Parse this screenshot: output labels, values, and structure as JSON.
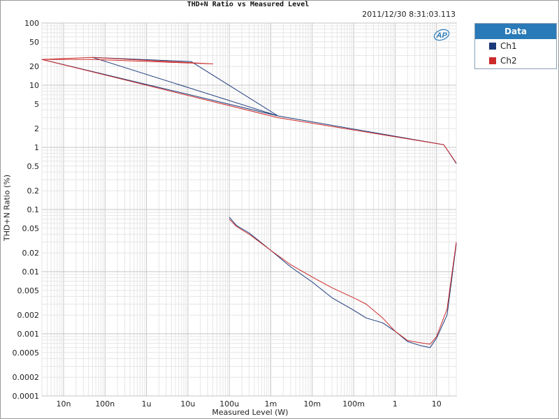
{
  "window": {
    "title": "THD+N Ratio vs Measured Level",
    "timestamp": "2011/12/30 8:31:03.113"
  },
  "legend": {
    "header": "Data",
    "items": [
      {
        "label": "Ch1",
        "color": "#1c3a7a"
      },
      {
        "label": "Ch2",
        "color": "#cc2a2a"
      }
    ]
  },
  "logo": {
    "icon": "ap-logo-icon",
    "color": "#2a7ab8"
  },
  "chart_data": {
    "type": "line",
    "title": "THD+N Ratio vs Measured Level",
    "xlabel": "Measured Level (W)",
    "ylabel": "THD+N Ratio (%)",
    "xscale": "log",
    "yscale": "log",
    "xlim": [
      3e-09,
      30
    ],
    "ylim": [
      0.0001,
      100
    ],
    "grid": true,
    "legend_position": "outside-right",
    "x_ticks": [
      {
        "v": 1e-08,
        "label": "10n"
      },
      {
        "v": 1e-07,
        "label": "100n"
      },
      {
        "v": 1e-06,
        "label": "1u"
      },
      {
        "v": 1e-05,
        "label": "10u"
      },
      {
        "v": 0.0001,
        "label": "100u"
      },
      {
        "v": 0.001,
        "label": "1m"
      },
      {
        "v": 0.01,
        "label": "10m"
      },
      {
        "v": 0.1,
        "label": "100m"
      },
      {
        "v": 1,
        "label": "1"
      },
      {
        "v": 10,
        "label": "10"
      }
    ],
    "y_ticks": [
      {
        "v": 100,
        "label": "100"
      },
      {
        "v": 50,
        "label": "50"
      },
      {
        "v": 20,
        "label": "20"
      },
      {
        "v": 10,
        "label": "10"
      },
      {
        "v": 5,
        "label": "5"
      },
      {
        "v": 2,
        "label": "2"
      },
      {
        "v": 1,
        "label": "1"
      },
      {
        "v": 0.5,
        "label": "0.5"
      },
      {
        "v": 0.2,
        "label": "0.2"
      },
      {
        "v": 0.1,
        "label": "0.1"
      },
      {
        "v": 0.05,
        "label": "0.05"
      },
      {
        "v": 0.02,
        "label": "0.02"
      },
      {
        "v": 0.01,
        "label": "0.01"
      },
      {
        "v": 0.005,
        "label": "0.005"
      },
      {
        "v": 0.002,
        "label": "0.002"
      },
      {
        "v": 0.001,
        "label": "0.001"
      },
      {
        "v": 0.0005,
        "label": "0.0005"
      },
      {
        "v": 0.0002,
        "label": "0.0002"
      },
      {
        "v": 0.0001,
        "label": "0.0001"
      }
    ],
    "series": [
      {
        "name": "Ch1",
        "color": "#1c3a7a",
        "x": [
          30,
          15,
          0.0015,
          5e-08,
          1.2e-05,
          0.0015,
          3e-09
        ],
        "y": [
          0.55,
          1.1,
          3.2,
          28,
          24,
          3.2,
          26
        ]
      },
      {
        "name": "Ch1",
        "color": "#1c3a7a",
        "x": [
          0.0001,
          0.00015,
          0.0003,
          0.001,
          0.003,
          0.01,
          0.03,
          0.1,
          0.2,
          0.5,
          1,
          2,
          4,
          7,
          10,
          18,
          30
        ],
        "y": [
          0.075,
          0.055,
          0.042,
          0.022,
          0.012,
          0.0068,
          0.0038,
          0.0024,
          0.0018,
          0.0015,
          0.0011,
          0.00075,
          0.00065,
          0.0006,
          0.00085,
          0.002,
          0.028
        ]
      },
      {
        "name": "Ch2",
        "color": "#cc2a2a",
        "x": [
          30,
          15,
          0.0015,
          3e-09,
          5e-08,
          4e-05,
          5e-08,
          3e-09
        ],
        "y": [
          0.56,
          1.1,
          3.0,
          26,
          28,
          22,
          26,
          26
        ]
      },
      {
        "name": "Ch2",
        "color": "#cc2a2a",
        "x": [
          0.0001,
          0.00015,
          0.0003,
          0.001,
          0.003,
          0.01,
          0.03,
          0.1,
          0.2,
          0.5,
          1,
          2,
          4,
          7,
          10,
          18,
          30
        ],
        "y": [
          0.07,
          0.053,
          0.04,
          0.022,
          0.013,
          0.0082,
          0.0055,
          0.0038,
          0.003,
          0.0018,
          0.0011,
          0.00078,
          0.00072,
          0.00068,
          0.0009,
          0.0025,
          0.03
        ]
      }
    ]
  }
}
